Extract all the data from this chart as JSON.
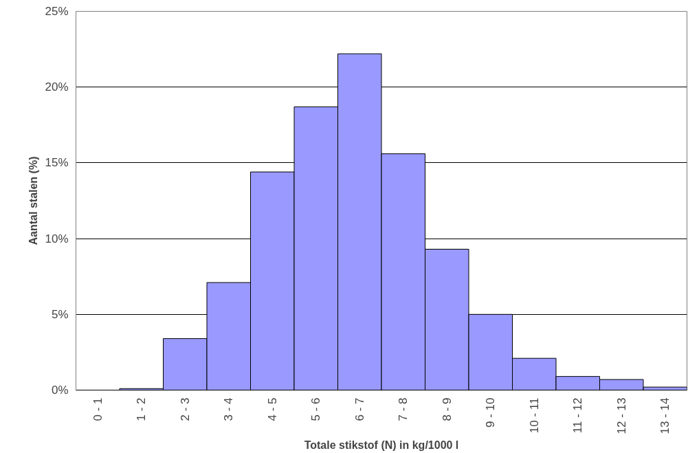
{
  "chart_data": {
    "type": "bar",
    "xlabel": "Totale stikstof (N) in kg/1000 l",
    "ylabel": "Aantal stalen (%)",
    "categories": [
      "0 - 1",
      "1 - 2",
      "2 - 3",
      "3 - 4",
      "4 - 5",
      "5 - 6",
      "6 - 7",
      "7 - 8",
      "8 - 9",
      "9 - 10",
      "10 - 11",
      "11 - 12",
      "12 - 13",
      "13 - 14"
    ],
    "values": [
      null,
      0.1,
      3.4,
      7.1,
      14.4,
      18.7,
      22.2,
      15.6,
      9.3,
      5.0,
      2.1,
      0.9,
      0.7,
      0.2
    ],
    "color": "#9999ff",
    "ylim": [
      0,
      25
    ],
    "yticks": [
      {
        "value": 0,
        "label": "0%"
      },
      {
        "value": 5,
        "label": "5%"
      },
      {
        "value": 10,
        "label": "10%"
      },
      {
        "value": 15,
        "label": "15%"
      },
      {
        "value": 20,
        "label": "20%"
      },
      {
        "value": 25,
        "label": "25%"
      }
    ],
    "grid": "y"
  }
}
